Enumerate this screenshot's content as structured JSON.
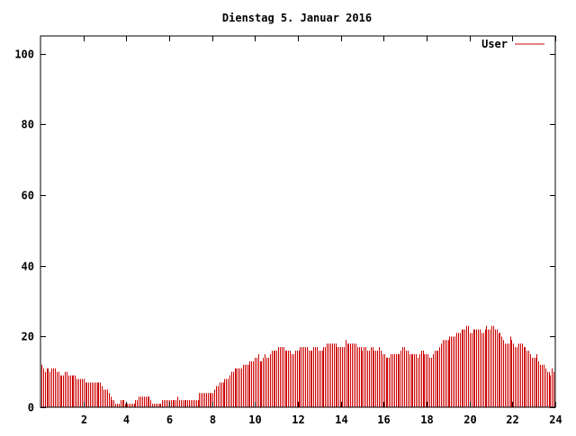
{
  "chart_data": {
    "type": "bar",
    "title": "Dienstag 5. Januar 2016",
    "xlabel": "",
    "ylabel": "",
    "xlim": [
      0,
      24
    ],
    "ylim": [
      0,
      105
    ],
    "x_ticks": [
      2,
      4,
      6,
      8,
      10,
      12,
      14,
      16,
      18,
      20,
      22,
      24
    ],
    "y_ticks": [
      0,
      20,
      40,
      60,
      80,
      100
    ],
    "grid": false,
    "legend_position": "top-right",
    "colors": {
      "series": "#cc0000",
      "axis": "#000000",
      "background": "#ffffff"
    },
    "series": [
      {
        "name": "User",
        "interval_hours": 0.0833,
        "values": [
          12,
          11,
          10,
          11,
          11,
          10,
          11,
          11,
          11,
          10,
          10,
          9,
          9,
          9,
          10,
          10,
          9,
          9,
          9,
          9,
          9,
          8,
          8,
          8,
          8,
          8,
          7,
          7,
          7,
          7,
          7,
          7,
          7,
          7,
          7,
          7,
          6,
          5,
          5,
          5,
          4,
          3,
          2,
          2,
          1,
          1,
          1,
          2,
          2,
          2,
          1,
          1,
          1,
          1,
          1,
          1,
          2,
          2,
          3,
          3,
          3,
          3,
          3,
          3,
          3,
          2,
          1,
          1,
          1,
          1,
          1,
          1,
          2,
          2,
          2,
          2,
          2,
          2,
          2,
          2,
          2,
          3,
          2,
          2,
          2,
          2,
          2,
          2,
          2,
          2,
          2,
          2,
          2,
          2,
          4,
          4,
          4,
          4,
          4,
          4,
          4,
          4,
          4,
          5,
          6,
          6,
          7,
          7,
          7,
          8,
          8,
          8,
          9,
          10,
          10,
          11,
          11,
          11,
          11,
          11,
          12,
          12,
          12,
          12,
          13,
          13,
          13,
          14,
          14,
          15,
          13,
          13,
          14,
          15,
          14,
          14,
          15,
          16,
          16,
          16,
          16,
          17,
          17,
          17,
          17,
          16,
          16,
          16,
          16,
          15,
          15,
          16,
          16,
          16,
          17,
          17,
          17,
          17,
          17,
          16,
          16,
          16,
          17,
          17,
          17,
          16,
          16,
          16,
          17,
          17,
          18,
          18,
          18,
          18,
          18,
          18,
          17,
          17,
          17,
          17,
          17,
          19,
          18,
          18,
          18,
          18,
          18,
          18,
          17,
          17,
          17,
          16,
          17,
          17,
          16,
          16,
          17,
          17,
          16,
          16,
          16,
          17,
          16,
          15,
          15,
          14,
          14,
          14,
          15,
          15,
          15,
          15,
          15,
          15,
          16,
          17,
          17,
          16,
          16,
          15,
          15,
          15,
          15,
          15,
          14,
          15,
          16,
          16,
          15,
          15,
          15,
          14,
          14,
          15,
          16,
          16,
          16,
          17,
          18,
          19,
          19,
          19,
          19,
          20,
          20,
          20,
          20,
          21,
          21,
          21,
          22,
          22,
          22,
          23,
          23,
          21,
          21,
          22,
          22,
          22,
          22,
          22,
          21,
          21,
          22,
          23,
          22,
          22,
          23,
          23,
          22,
          22,
          21,
          21,
          20,
          19,
          18,
          18,
          18,
          20,
          19,
          18,
          17,
          17,
          18,
          18,
          18,
          17,
          17,
          16,
          16,
          15,
          14,
          14,
          14,
          15,
          13,
          12,
          12,
          12,
          11,
          10,
          10,
          9,
          11,
          10
        ]
      }
    ]
  }
}
